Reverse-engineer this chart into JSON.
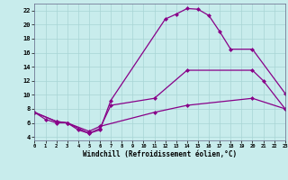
{
  "xlabel": "Windchill (Refroidissement éolien,°C)",
  "background_color": "#c8ecec",
  "line_color": "#880088",
  "grid_color": "#a8d4d4",
  "xlim": [
    0,
    23
  ],
  "ylim": [
    3.5,
    23.0
  ],
  "yticks": [
    4,
    6,
    8,
    10,
    12,
    14,
    16,
    18,
    20,
    22
  ],
  "xticks": [
    0,
    1,
    2,
    3,
    4,
    5,
    6,
    7,
    8,
    9,
    10,
    11,
    12,
    13,
    14,
    15,
    16,
    17,
    18,
    19,
    20,
    21,
    22,
    23
  ],
  "line1_x": [
    0,
    1,
    2,
    3,
    5,
    6,
    7,
    12,
    13,
    14,
    15,
    16,
    17,
    18,
    20,
    23
  ],
  "line1_y": [
    7.5,
    6.5,
    6.0,
    6.0,
    4.5,
    5.0,
    9.2,
    20.8,
    21.5,
    22.3,
    22.2,
    21.3,
    19.0,
    16.5,
    16.5,
    10.2
  ],
  "line2_x": [
    0,
    2,
    3,
    4,
    5,
    6,
    7,
    11,
    14,
    20,
    21,
    23
  ],
  "line2_y": [
    7.5,
    6.2,
    6.0,
    5.0,
    4.5,
    5.2,
    8.5,
    9.5,
    13.5,
    13.5,
    12.0,
    8.0
  ],
  "line3_x": [
    0,
    2,
    3,
    5,
    6,
    11,
    14,
    20,
    23
  ],
  "line3_y": [
    7.5,
    6.2,
    6.0,
    4.8,
    5.5,
    7.5,
    8.5,
    9.5,
    8.0
  ],
  "xlabel_fontsize": 5.5,
  "tick_fontsize": 5.0,
  "marker_size": 2.5,
  "linewidth": 0.9
}
